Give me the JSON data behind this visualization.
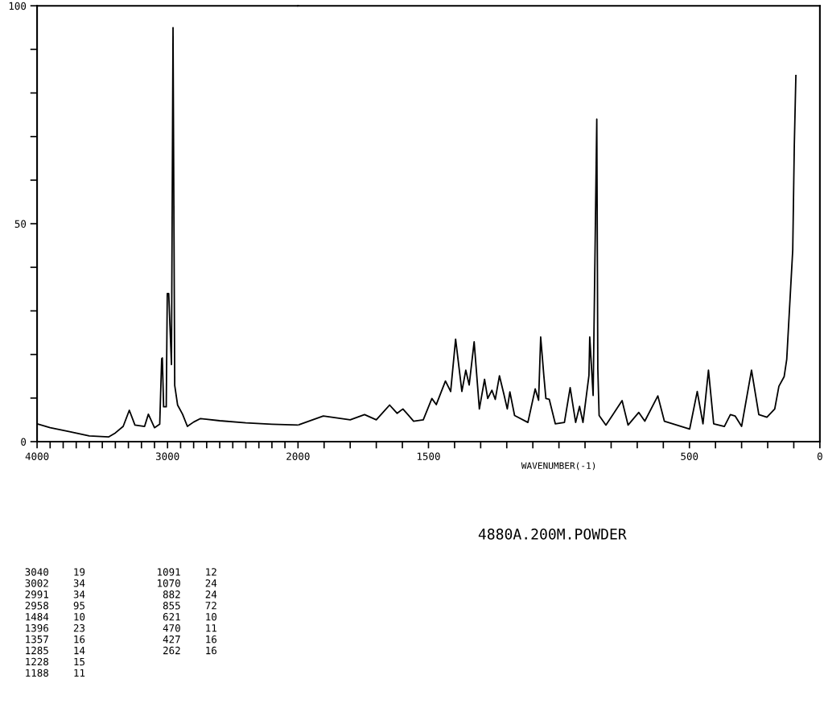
{
  "chart_data": [
    {
      "type": "line",
      "annotations": [
        "4880A.200M.POWDER",
        "3040    19",
        "3002    34",
        "2991    34",
        "2958    95",
        "1484    10",
        "1396    23",
        "1357    16",
        "1285    14",
        "1228    15",
        "1188    11",
        "1091    12",
        "1070    24",
        " 882    24",
        " 855    72",
        " 621    10",
        " 470    11",
        " 427    16",
        " 262    16"
      ],
      "x": [
        4000,
        3900,
        3750,
        3600,
        3450,
        3400,
        3340,
        3293,
        3250,
        3176,
        3147,
        3100,
        3060,
        3045,
        3040,
        3030,
        3010,
        3002,
        2991,
        2970,
        2958,
        2945,
        2923,
        2885,
        2848,
        2800,
        2747,
        2600,
        2400,
        2200,
        2000
      ],
      "series": [
        {
          "color": "#000000",
          "values": [
            4.1,
            3.2,
            2.3,
            1.3,
            1.1,
            2.0,
            3.5,
            7.2,
            3.8,
            3.5,
            6.3,
            3.2,
            4.0,
            19,
            19.2,
            8,
            8,
            34,
            34,
            17.7,
            95,
            12.9,
            8.4,
            6.3,
            3.5,
            4.5,
            5.3,
            4.8,
            4.3,
            4.0,
            3.8
          ]
        }
      ],
      "xlim": [
        4000,
        2000
      ],
      "xticks": [
        4000,
        {
          "value": 3900,
          "label": null
        },
        {
          "value": 3800,
          "label": null
        },
        {
          "value": 3700,
          "label": null
        },
        {
          "value": 3600,
          "label": null
        },
        {
          "value": 3500,
          "label": null
        },
        {
          "value": 3400,
          "label": null
        },
        {
          "value": 3300,
          "label": null
        },
        {
          "value": 3200,
          "label": null
        },
        {
          "value": 3100,
          "label": null
        },
        3000,
        {
          "value": 2900,
          "label": null
        },
        {
          "value": 2800,
          "label": null
        },
        {
          "value": 2700,
          "label": null
        },
        {
          "value": 2600,
          "label": null
        },
        {
          "value": 2500,
          "label": null
        },
        {
          "value": 2400,
          "label": null
        },
        {
          "value": 2300,
          "label": null
        },
        {
          "value": 2200,
          "label": null
        },
        {
          "value": 2100,
          "label": null
        }
      ],
      "ylim": [
        0,
        100
      ],
      "yticks": [
        0,
        {
          "value": 10,
          "label": null
        },
        {
          "value": 20,
          "label": null
        },
        {
          "value": 30,
          "label": null
        },
        {
          "value": 40,
          "label": null
        },
        50,
        {
          "value": 60,
          "label": null
        },
        {
          "value": 70,
          "label": null
        },
        {
          "value": 80,
          "label": null
        },
        {
          "value": 90,
          "label": null
        },
        100
      ],
      "marker": "none",
      "line_style": "solid"
    },
    {
      "type": "line",
      "xlabel": "WAVENUMBER(-1)",
      "x": [
        2000,
        1903,
        1800,
        1745,
        1700,
        1649,
        1620,
        1598,
        1557,
        1520,
        1487,
        1470,
        1435,
        1415,
        1396,
        1372,
        1357,
        1344,
        1325,
        1305,
        1285,
        1273,
        1257,
        1244,
        1228,
        1211,
        1198,
        1188,
        1170,
        1119,
        1091,
        1078,
        1070,
        1058,
        1050,
        1037,
        1014,
        979,
        957,
        936,
        921,
        908,
        885,
        882,
        869,
        855,
        851,
        846,
        820,
        758,
        735,
        694,
        671,
        621,
        596,
        499,
        470,
        448,
        427,
        407,
        366,
        343,
        325,
        300,
        262,
        234,
        203,
        173,
        157,
        137,
        127,
        104,
        98,
        92
      ],
      "series": [
        {
          "color": "#000000",
          "values": [
            3.8,
            5.9,
            5.0,
            6.2,
            5.0,
            8.4,
            6.5,
            7.5,
            4.7,
            5.0,
            9.9,
            8.5,
            13.9,
            11.5,
            23.5,
            11.5,
            16.4,
            13,
            22.9,
            7.5,
            14.3,
            9.9,
            11.8,
            9.7,
            15.1,
            10.9,
            7.5,
            11.4,
            6.0,
            4.4,
            12.1,
            9.5,
            24,
            15.2,
            9.9,
            9.7,
            4.1,
            4.4,
            12.4,
            4.4,
            8.1,
            4.4,
            15.2,
            24,
            10.6,
            74,
            16.7,
            6.0,
            3.8,
            9.4,
            3.8,
            6.7,
            4.7,
            10.5,
            4.7,
            2.9,
            11.5,
            4.1,
            16.4,
            4.1,
            3.5,
            6.2,
            5.9,
            3.5,
            16.4,
            6.2,
            5.6,
            7.5,
            12.7,
            14.9,
            18.9,
            44,
            68,
            84
          ]
        }
      ],
      "xlim": [
        2000,
        0
      ],
      "xticks": [
        2000,
        {
          "value": 1900,
          "label": null
        },
        {
          "value": 1800,
          "label": null
        },
        {
          "value": 1700,
          "label": null
        },
        {
          "value": 1600,
          "label": null
        },
        1500,
        {
          "value": 1400,
          "label": null
        },
        {
          "value": 1300,
          "label": null
        },
        {
          "value": 1200,
          "label": null
        },
        {
          "value": 1100,
          "label": null
        },
        {
          "value": 1000,
          "label": null
        },
        {
          "value": 900,
          "label": null
        },
        {
          "value": 800,
          "label": null
        },
        {
          "value": 700,
          "label": null
        },
        {
          "value": 600,
          "label": null
        },
        500,
        {
          "value": 400,
          "label": null
        },
        {
          "value": 300,
          "label": null
        },
        {
          "value": 200,
          "label": null
        },
        {
          "value": 100,
          "label": null
        },
        0
      ],
      "ylim": [
        0,
        100
      ],
      "tick_labels": "x",
      "marker": "none",
      "line_style": "solid"
    }
  ]
}
